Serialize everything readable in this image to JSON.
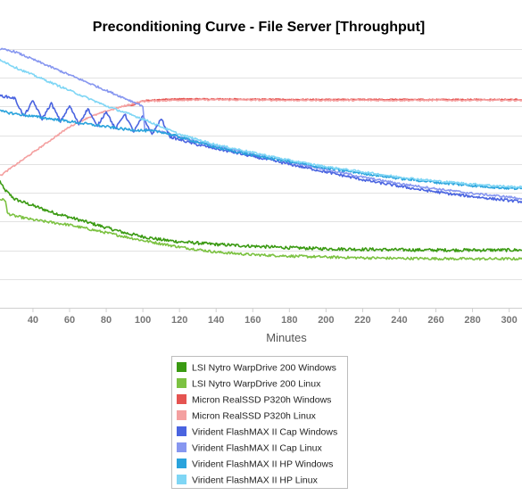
{
  "chart_data": {
    "type": "line",
    "title": "Preconditioning Curve - File Server [Throughput]",
    "xlabel": "Minutes",
    "ylabel": "",
    "xlim": [
      22,
      307
    ],
    "ylim": [
      0,
      10
    ],
    "grid": true,
    "legend_position": "bottom-center",
    "x_ticks": [
      40,
      60,
      80,
      100,
      120,
      140,
      160,
      180,
      200,
      220,
      240,
      260,
      280,
      300
    ],
    "series": [
      {
        "name": "LSI Nytro WarpDrive 200 Windows",
        "color": "#3a9a12",
        "noise": 0.06,
        "x": [
          22,
          24,
          30,
          40,
          50,
          60,
          70,
          80,
          90,
          100,
          110,
          120,
          140,
          160,
          180,
          200,
          220,
          240,
          260,
          280,
          300,
          307
        ],
        "y": [
          4.9,
          4.6,
          4.2,
          3.95,
          3.7,
          3.5,
          3.3,
          3.1,
          2.9,
          2.75,
          2.63,
          2.55,
          2.45,
          2.38,
          2.32,
          2.28,
          2.26,
          2.24,
          2.23,
          2.23,
          2.23,
          2.23
        ]
      },
      {
        "name": "LSI Nytro WarpDrive 200 Linux",
        "color": "#7cc242",
        "noise": 0.05,
        "x": [
          22,
          25,
          26,
          30,
          40,
          60,
          80,
          100,
          120,
          140,
          160,
          180,
          200,
          220,
          240,
          260,
          280,
          300,
          307
        ],
        "y": [
          4.2,
          4.15,
          3.65,
          3.55,
          3.4,
          3.2,
          2.9,
          2.6,
          2.35,
          2.15,
          2.05,
          2.0,
          1.96,
          1.93,
          1.91,
          1.9,
          1.89,
          1.89,
          1.89
        ]
      },
      {
        "name": "Micron RealSSD P320h Windows",
        "color": "#e55451",
        "noise": 0.02,
        "x": [
          90,
          95,
          100,
          110,
          120,
          140,
          160,
          180,
          200,
          220,
          240,
          260,
          280,
          300,
          307
        ],
        "y": [
          7.8,
          7.85,
          8.0,
          8.05,
          8.07,
          8.07,
          8.06,
          8.05,
          8.05,
          8.05,
          8.05,
          8.05,
          8.05,
          8.05,
          8.05
        ]
      },
      {
        "name": "Micron RealSSD P320h Linux",
        "color": "#f4a0a0",
        "noise": 0.03,
        "x": [
          22,
          30,
          40,
          50,
          60,
          70,
          80,
          90,
          95,
          100,
          120,
          140,
          160,
          180,
          200,
          220,
          240,
          260,
          280,
          300,
          307
        ],
        "y": [
          5.1,
          5.5,
          6.0,
          6.5,
          7.0,
          7.35,
          7.6,
          7.8,
          7.9,
          7.98,
          8.03,
          8.04,
          8.03,
          8.02,
          8.02,
          8.02,
          8.02,
          8.02,
          8.02,
          8.02,
          8.02
        ]
      },
      {
        "name": "Virident FlashMAX II Cap Windows",
        "color": "#4a64e0",
        "noise": 0.05,
        "x": [
          22,
          30,
          35,
          40,
          45,
          50,
          55,
          60,
          65,
          70,
          75,
          80,
          85,
          90,
          95,
          100,
          105,
          110,
          115,
          120,
          125,
          130,
          140,
          150,
          160,
          170,
          180,
          190,
          200,
          210,
          220,
          230,
          240,
          250,
          260,
          270,
          280,
          290,
          300,
          307
        ],
        "y": [
          8.2,
          8.1,
          7.4,
          8.0,
          7.3,
          7.9,
          7.2,
          7.8,
          7.1,
          7.7,
          7.0,
          7.6,
          6.9,
          7.5,
          6.8,
          7.4,
          6.7,
          7.3,
          6.6,
          6.5,
          6.4,
          6.3,
          6.15,
          6.0,
          5.85,
          5.7,
          5.55,
          5.4,
          5.25,
          5.1,
          4.95,
          4.82,
          4.7,
          4.58,
          4.48,
          4.38,
          4.3,
          4.22,
          4.15,
          4.1
        ]
      },
      {
        "name": "Virident FlashMAX II Cap Linux",
        "color": "#8797f0",
        "noise": 0.04,
        "x": [
          22,
          30,
          40,
          50,
          60,
          70,
          80,
          90,
          100,
          101,
          110,
          120,
          140,
          160,
          180,
          200,
          220,
          240,
          260,
          280,
          300,
          307
        ],
        "y": [
          10.0,
          9.9,
          9.6,
          9.3,
          9.0,
          8.7,
          8.4,
          8.1,
          7.8,
          6.9,
          6.8,
          6.6,
          6.25,
          5.95,
          5.65,
          5.35,
          5.05,
          4.8,
          4.6,
          4.42,
          4.28,
          4.22
        ]
      },
      {
        "name": "Virident FlashMAX II HP Windows",
        "color": "#2aa3dc",
        "noise": 0.05,
        "x": [
          22,
          30,
          40,
          50,
          60,
          70,
          80,
          90,
          100,
          110,
          120,
          140,
          160,
          180,
          200,
          220,
          240,
          260,
          280,
          300,
          307
        ],
        "y": [
          7.6,
          7.5,
          7.4,
          7.3,
          7.2,
          7.1,
          7.0,
          6.9,
          6.85,
          6.8,
          6.6,
          6.2,
          5.9,
          5.65,
          5.4,
          5.2,
          5.0,
          4.85,
          4.72,
          4.62,
          4.6
        ]
      },
      {
        "name": "Virident FlashMAX II HP Linux",
        "color": "#7fd6f5",
        "noise": 0.04,
        "x": [
          22,
          30,
          40,
          50,
          60,
          70,
          80,
          90,
          100,
          110,
          120,
          140,
          160,
          180,
          200,
          220,
          240,
          260,
          280,
          300,
          307
        ],
        "y": [
          9.6,
          9.3,
          9.0,
          8.7,
          8.4,
          8.1,
          7.8,
          7.55,
          7.3,
          7.0,
          6.7,
          6.3,
          6.0,
          5.7,
          5.45,
          5.25,
          5.05,
          4.9,
          4.78,
          4.68,
          4.66
        ]
      }
    ]
  }
}
